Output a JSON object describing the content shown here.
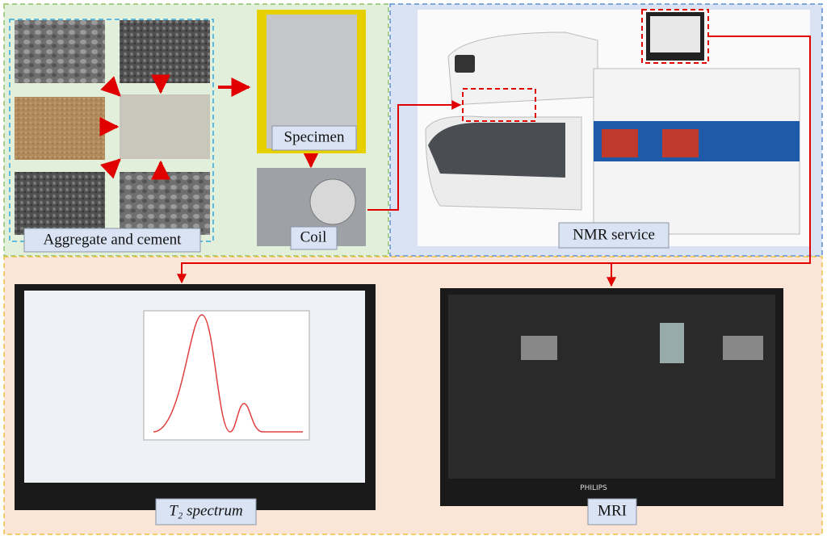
{
  "labels": {
    "aggregate": "Aggregate and cement",
    "specimen": "Specimen",
    "coil": "Coil",
    "nmr": "NMR service",
    "t2": "T₂ spectrum",
    "mri": "MRI"
  },
  "monitor_brand": "PHILIPS"
}
